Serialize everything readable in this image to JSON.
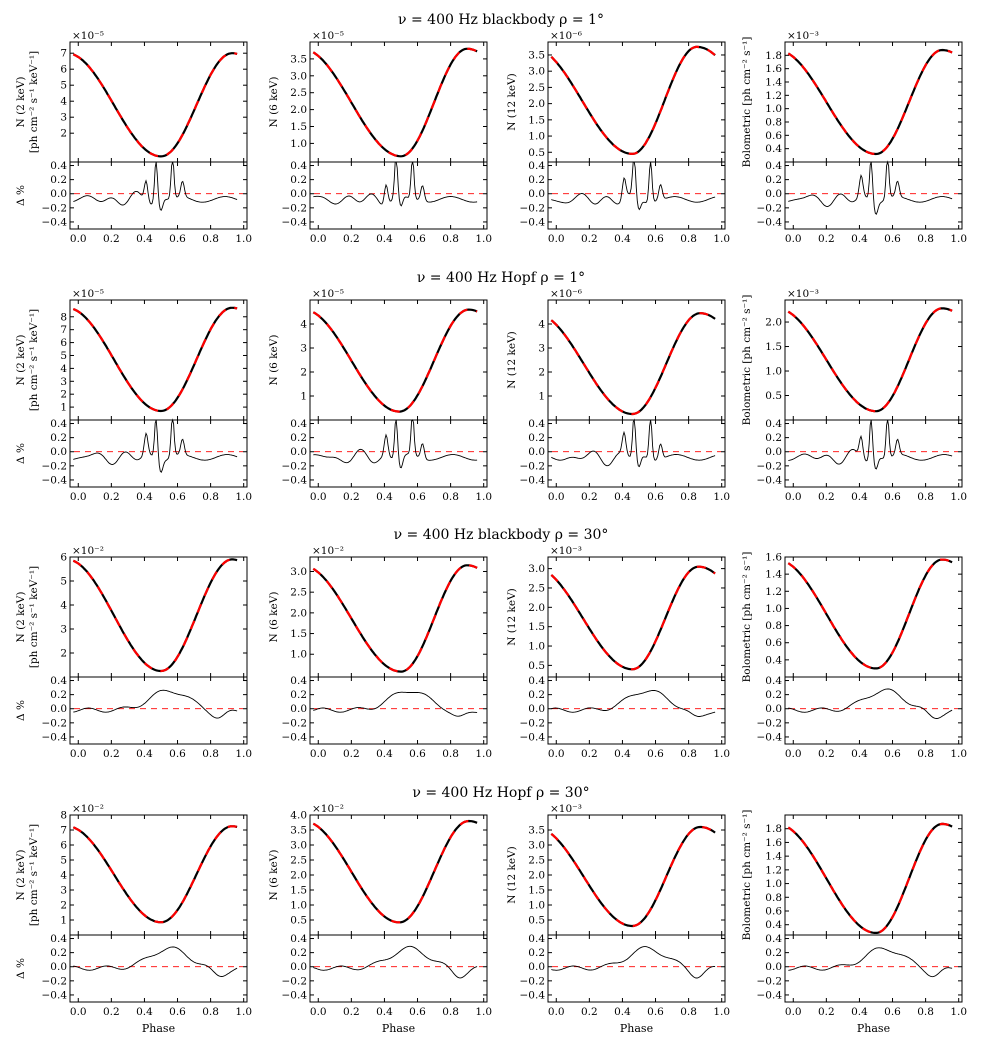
{
  "figure": {
    "x_axis_label": "Phase",
    "x_tick_labels": [
      "0.0",
      "0.2",
      "0.4",
      "0.6",
      "0.8",
      "1.0"
    ],
    "residual_label": "Δ %",
    "residual_tick_labels": [
      "0.4",
      "0.2",
      "0.0",
      "−0.2",
      "−0.4"
    ],
    "colors": {
      "model_a": "#000000",
      "model_b": "#ff0000",
      "reference": "#ff0000"
    }
  },
  "chart_data": [
    {
      "type": "line",
      "title": "ν = 400 Hz  blackbody  ρ = 1°",
      "panels": [
        {
          "ylabel": "N (2 keV)",
          "ylabel2": "[ph cm⁻² s⁻¹ keV⁻¹]",
          "exponent": "×10⁻⁵",
          "ylim": [
            0.2,
            7.7
          ],
          "yticks": [
            "2",
            "3",
            "4",
            "5",
            "6",
            "7"
          ],
          "ytick_values": [
            2,
            3,
            4,
            5,
            6,
            7
          ],
          "min": 0.55,
          "max": 7.0,
          "min_phase": 0.5,
          "max_phase": 0.93,
          "residual_pattern": "spiky"
        },
        {
          "ylabel": "N (6 keV)",
          "ylabel2": "",
          "exponent": "×10⁻⁵",
          "ylim": [
            0.45,
            4.0
          ],
          "yticks": [
            "1.0",
            "1.5",
            "2.0",
            "2.5",
            "3.0",
            "3.5"
          ],
          "ytick_values": [
            1.0,
            1.5,
            2.0,
            2.5,
            3.0,
            3.5
          ],
          "min": 0.62,
          "max": 3.8,
          "min_phase": 0.5,
          "max_phase": 0.9,
          "residual_pattern": "spiky"
        },
        {
          "ylabel": "N (12 keV)",
          "ylabel2": "",
          "exponent": "×10⁻⁶",
          "ylim": [
            0.2,
            3.9
          ],
          "yticks": [
            "0.5",
            "1.0",
            "1.5",
            "2.0",
            "2.5",
            "3.0",
            "3.5"
          ],
          "ytick_values": [
            0.5,
            1.0,
            1.5,
            2.0,
            2.5,
            3.0,
            3.5
          ],
          "min": 0.45,
          "max": 3.75,
          "min_phase": 0.46,
          "max_phase": 0.85,
          "residual_pattern": "spiky"
        },
        {
          "ylabel": "Bolometric [ph cm⁻² s⁻¹]",
          "ylabel2": "",
          "exponent": "×10⁻³",
          "ylim": [
            0.2,
            2.0
          ],
          "yticks": [
            "0.4",
            "0.6",
            "0.8",
            "1.0",
            "1.2",
            "1.4",
            "1.6",
            "1.8"
          ],
          "ytick_values": [
            0.4,
            0.6,
            0.8,
            1.0,
            1.2,
            1.4,
            1.6,
            1.8
          ],
          "min": 0.32,
          "max": 1.88,
          "min_phase": 0.5,
          "max_phase": 0.9,
          "residual_pattern": "spiky"
        }
      ]
    },
    {
      "type": "line",
      "title": "ν = 400 Hz  Hopf  ρ = 1°",
      "panels": [
        {
          "ylabel": "N (2 keV)",
          "ylabel2": "[ph cm⁻² s⁻¹ keV⁻¹]",
          "exponent": "×10⁻⁵",
          "ylim": [
            0.0,
            9.3
          ],
          "yticks": [
            "1",
            "2",
            "3",
            "4",
            "5",
            "6",
            "7",
            "8"
          ],
          "ytick_values": [
            1,
            2,
            3,
            4,
            5,
            6,
            7,
            8
          ],
          "min": 0.7,
          "max": 8.7,
          "min_phase": 0.5,
          "max_phase": 0.93,
          "residual_pattern": "spiky"
        },
        {
          "ylabel": "N (6 keV)",
          "ylabel2": "",
          "exponent": "×10⁻⁵",
          "ylim": [
            0.0,
            5.0
          ],
          "yticks": [
            "1",
            "2",
            "3",
            "4"
          ],
          "ytick_values": [
            1,
            2,
            3,
            4
          ],
          "min": 0.35,
          "max": 4.6,
          "min_phase": 0.49,
          "max_phase": 0.91,
          "residual_pattern": "spiky"
        },
        {
          "ylabel": "N (12 keV)",
          "ylabel2": "",
          "exponent": "×10⁻⁶",
          "ylim": [
            0.0,
            5.0
          ],
          "yticks": [
            "1",
            "2",
            "3",
            "4"
          ],
          "ytick_values": [
            1,
            2,
            3,
            4
          ],
          "min": 0.25,
          "max": 4.45,
          "min_phase": 0.46,
          "max_phase": 0.87,
          "residual_pattern": "spiky"
        },
        {
          "ylabel": "Bolometric [ph cm⁻² s⁻¹]",
          "ylabel2": "",
          "exponent": "×10⁻³",
          "ylim": [
            0.0,
            2.45
          ],
          "yticks": [
            "0.5",
            "1.0",
            "1.5",
            "2.0"
          ],
          "ytick_values": [
            0.5,
            1.0,
            1.5,
            2.0
          ],
          "min": 0.18,
          "max": 2.28,
          "min_phase": 0.5,
          "max_phase": 0.9,
          "residual_pattern": "spiky"
        }
      ]
    },
    {
      "type": "line",
      "title": "ν = 400 Hz  blackbody  ρ = 30°",
      "panels": [
        {
          "ylabel": "N (2 keV)",
          "ylabel2": "[ph cm⁻² s⁻¹ keV⁻¹]",
          "exponent": "×10⁻²",
          "ylim": [
            1.0,
            6.0
          ],
          "yticks": [
            "2",
            "3",
            "4",
            "5",
            "6"
          ],
          "ytick_values": [
            2,
            3,
            4,
            5,
            6
          ],
          "min": 1.25,
          "max": 5.9,
          "min_phase": 0.5,
          "max_phase": 0.93,
          "residual_pattern": "smooth"
        },
        {
          "ylabel": "N (6 keV)",
          "ylabel2": "",
          "exponent": "×10⁻²",
          "ylim": [
            0.45,
            3.35
          ],
          "yticks": [
            "1.0",
            "1.5",
            "2.0",
            "2.5",
            "3.0"
          ],
          "ytick_values": [
            1.0,
            1.5,
            2.0,
            2.5,
            3.0
          ],
          "min": 0.58,
          "max": 3.15,
          "min_phase": 0.5,
          "max_phase": 0.9,
          "residual_pattern": "smooth"
        },
        {
          "ylabel": "N (12 keV)",
          "ylabel2": "",
          "exponent": "×10⁻³",
          "ylim": [
            0.2,
            3.3
          ],
          "yticks": [
            "0.5",
            "1.0",
            "1.5",
            "2.0",
            "2.5",
            "3.0"
          ],
          "ytick_values": [
            0.5,
            1.0,
            1.5,
            2.0,
            2.5,
            3.0
          ],
          "min": 0.4,
          "max": 3.05,
          "min_phase": 0.46,
          "max_phase": 0.86,
          "residual_pattern": "smooth"
        },
        {
          "ylabel": "Bolometric [ph cm⁻² s⁻¹]",
          "ylabel2": "",
          "exponent": "",
          "ylim": [
            0.2,
            1.6
          ],
          "yticks": [
            "0.4",
            "0.6",
            "0.8",
            "1.0",
            "1.2",
            "1.4",
            "1.6"
          ],
          "ytick_values": [
            0.4,
            0.6,
            0.8,
            1.0,
            1.2,
            1.4,
            1.6
          ],
          "min": 0.3,
          "max": 1.57,
          "min_phase": 0.5,
          "max_phase": 0.9,
          "residual_pattern": "smooth"
        }
      ]
    },
    {
      "type": "line",
      "title": "ν = 400 Hz  Hopf  ρ = 30°",
      "panels": [
        {
          "ylabel": "N (2 keV)",
          "ylabel2": "[ph cm⁻² s⁻¹ keV⁻¹]",
          "exponent": "×10⁻²",
          "ylim": [
            0.0,
            8.0
          ],
          "yticks": [
            "1",
            "2",
            "3",
            "4",
            "5",
            "6",
            "7",
            "8"
          ],
          "ytick_values": [
            1,
            2,
            3,
            4,
            5,
            6,
            7,
            8
          ],
          "min": 0.85,
          "max": 7.25,
          "min_phase": 0.5,
          "max_phase": 0.93,
          "residual_pattern": "smooth"
        },
        {
          "ylabel": "N (6 keV)",
          "ylabel2": "",
          "exponent": "×10⁻²",
          "ylim": [
            0.0,
            4.0
          ],
          "yticks": [
            "0.5",
            "1.0",
            "1.5",
            "2.0",
            "2.5",
            "3.0",
            "3.5",
            "4.0"
          ],
          "ytick_values": [
            0.5,
            1.0,
            1.5,
            2.0,
            2.5,
            3.0,
            3.5,
            4.0
          ],
          "min": 0.42,
          "max": 3.8,
          "min_phase": 0.49,
          "max_phase": 0.91,
          "residual_pattern": "smooth"
        },
        {
          "ylabel": "N (12 keV)",
          "ylabel2": "",
          "exponent": "×10⁻³",
          "ylim": [
            0.0,
            4.0
          ],
          "yticks": [
            "0.5",
            "1.0",
            "1.5",
            "2.0",
            "2.5",
            "3.0",
            "3.5"
          ],
          "ytick_values": [
            0.5,
            1.0,
            1.5,
            2.0,
            2.5,
            3.0,
            3.5
          ],
          "min": 0.3,
          "max": 3.6,
          "min_phase": 0.46,
          "max_phase": 0.87,
          "residual_pattern": "smooth"
        },
        {
          "ylabel": "Bolometric [ph cm⁻² s⁻¹]",
          "ylabel2": "",
          "exponent": "",
          "ylim": [
            0.25,
            2.0
          ],
          "yticks": [
            "0.4",
            "0.6",
            "0.8",
            "1.0",
            "1.2",
            "1.4",
            "1.6",
            "1.8"
          ],
          "ytick_values": [
            0.4,
            0.6,
            0.8,
            1.0,
            1.2,
            1.4,
            1.6,
            1.8
          ],
          "min": 0.28,
          "max": 1.87,
          "min_phase": 0.5,
          "max_phase": 0.9,
          "residual_pattern": "smooth"
        }
      ]
    }
  ]
}
